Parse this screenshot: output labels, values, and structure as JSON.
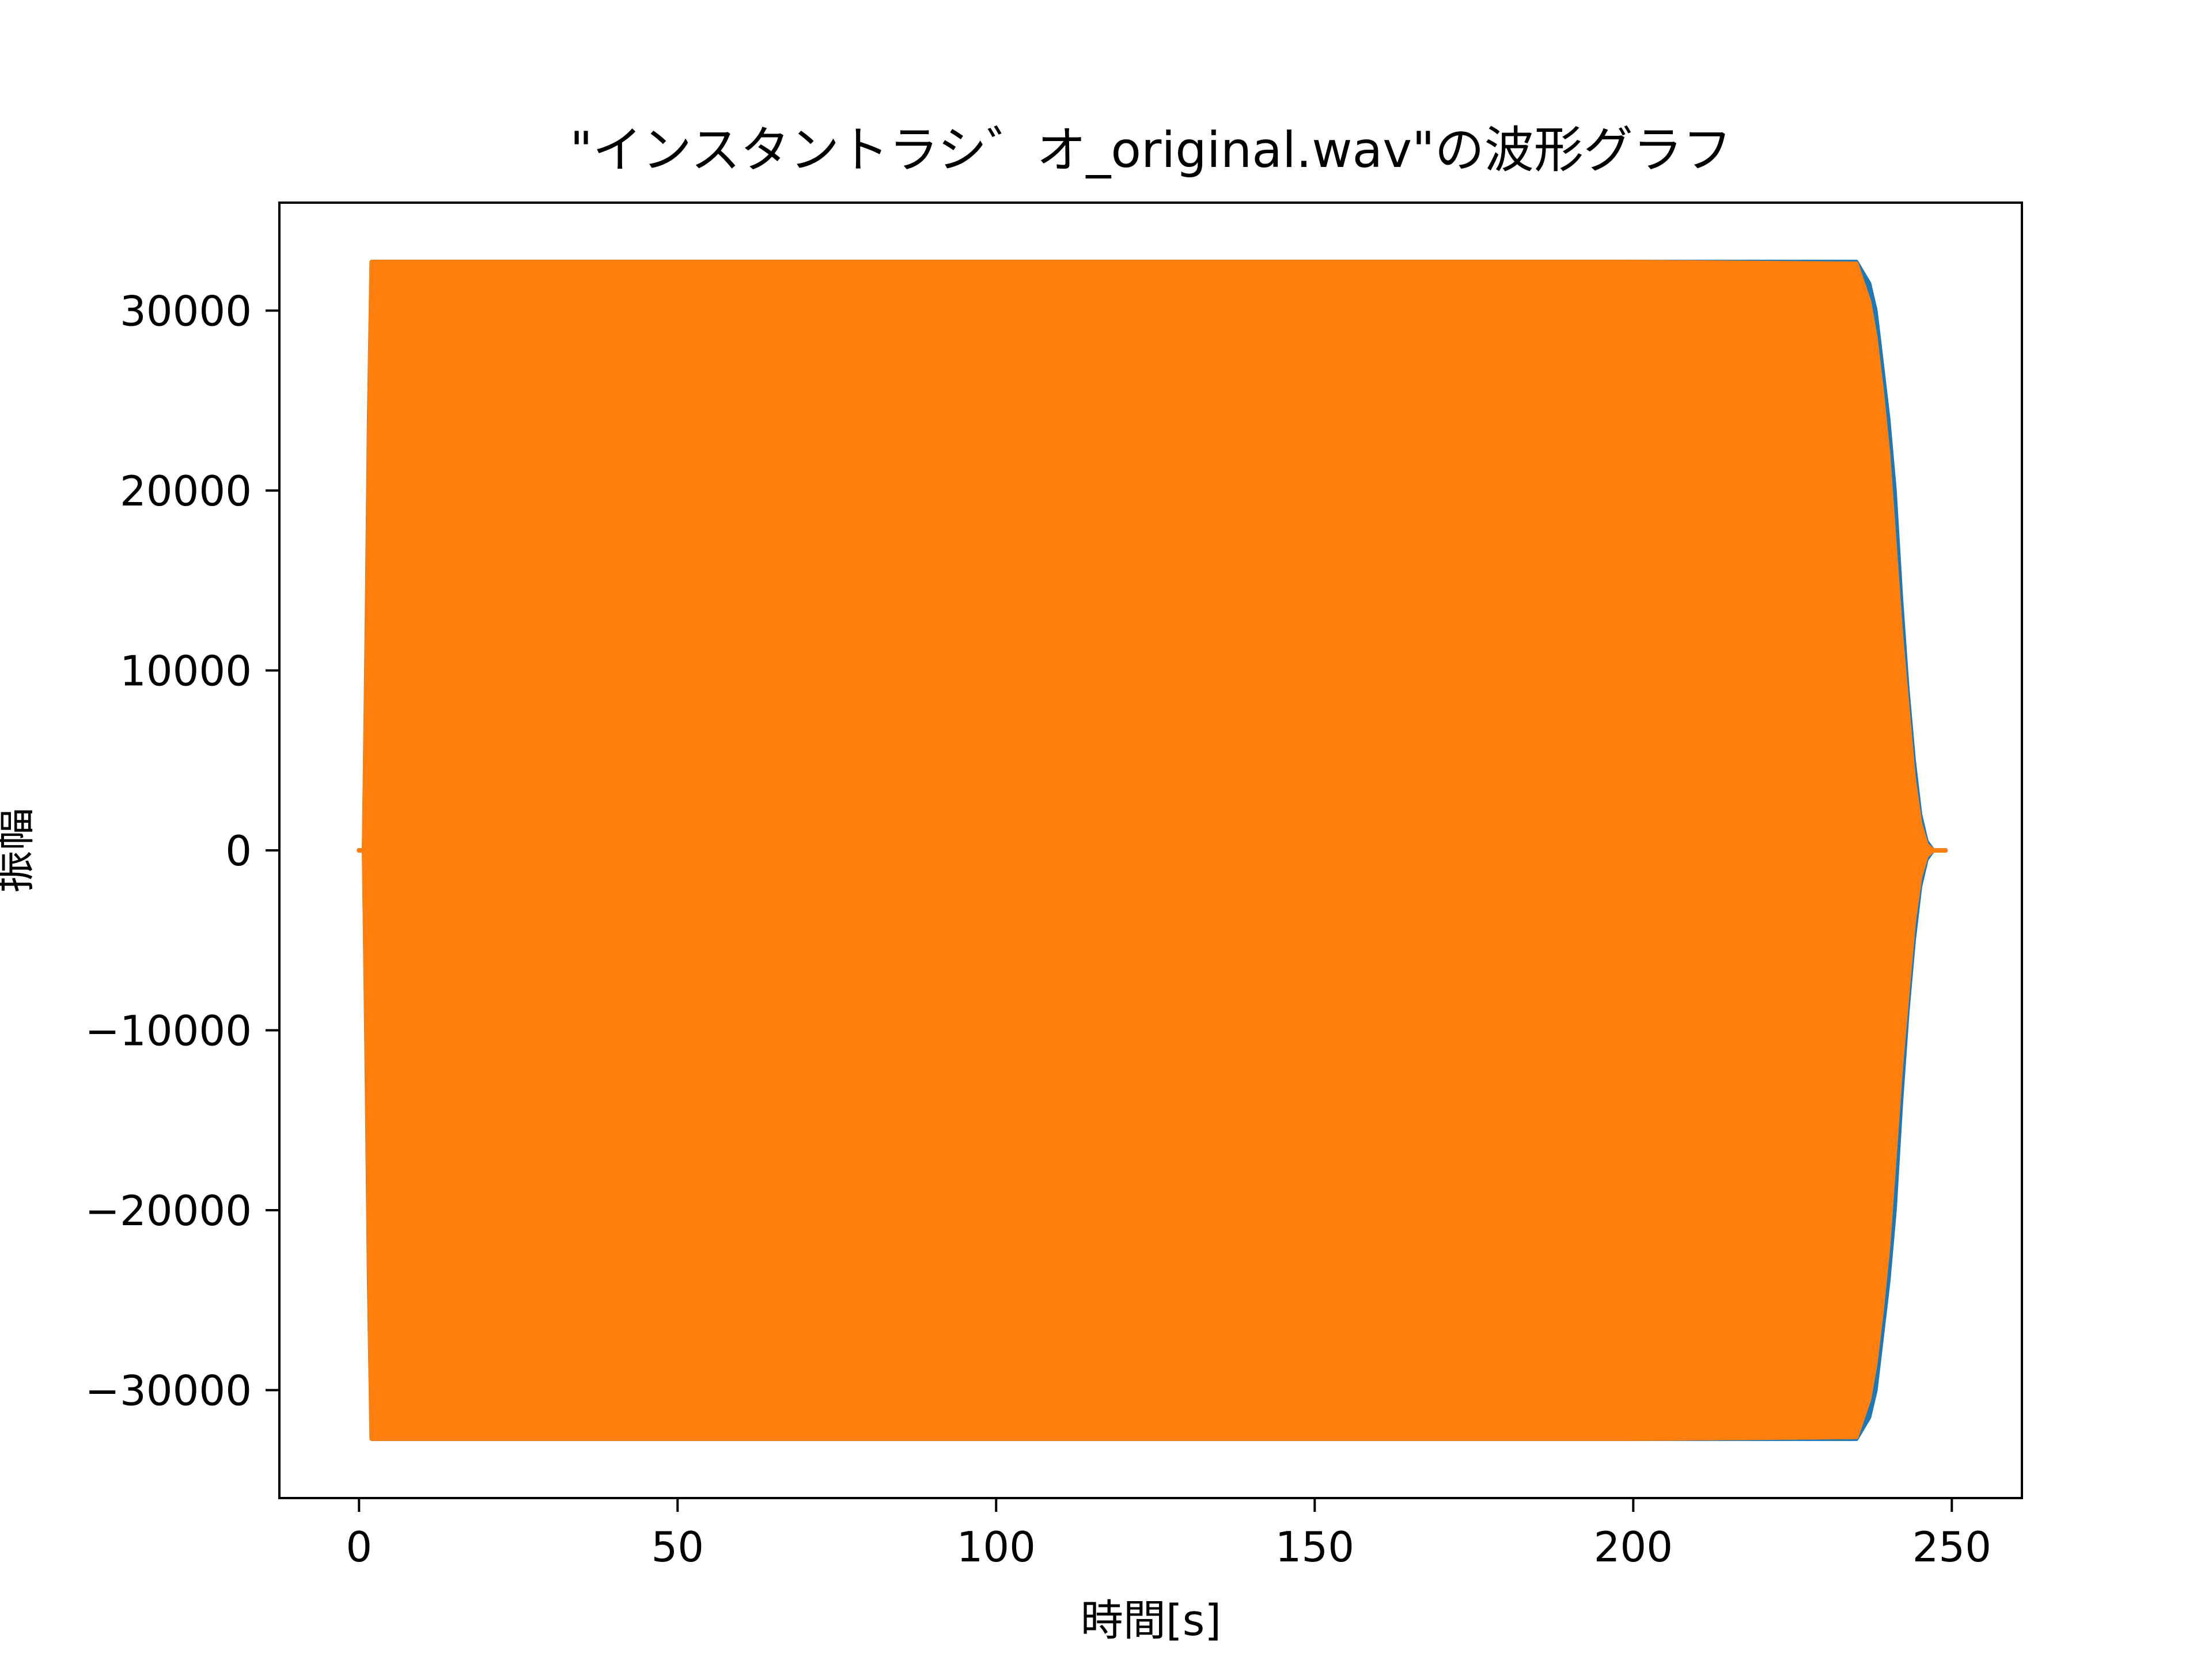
{
  "chart_data": {
    "type": "line",
    "title": "\"インスタントラシ゛オ_original.wav\"の波形グラフ",
    "xlabel": "時間[s]",
    "ylabel": "振幅",
    "xlim": [
      -12.5,
      261
    ],
    "ylim": [
      -36000,
      36000
    ],
    "xticks": [
      0,
      50,
      100,
      150,
      200,
      250
    ],
    "xtick_labels": [
      "0",
      "50",
      "100",
      "150",
      "200",
      "250"
    ],
    "yticks": [
      -30000,
      -20000,
      -10000,
      0,
      10000,
      20000,
      30000
    ],
    "ytick_labels": [
      "−30000",
      "−20000",
      "−10000",
      "0",
      "10000",
      "20000",
      "30000"
    ],
    "grid": false,
    "legend": "none",
    "series": [
      {
        "color": "#1f77b4",
        "envelope": {
          "x": [
            0,
            0.8,
            1.2,
            1.6,
            2,
            5,
            50,
            100,
            150,
            200,
            235,
            237,
            238,
            239,
            240,
            241,
            242,
            243,
            244,
            245,
            246,
            247,
            248,
            249
          ],
          "upper": [
            0,
            0,
            11000,
            24000,
            32700,
            32700,
            32700,
            32700,
            32700,
            32700,
            32700,
            31500,
            30000,
            27000,
            24000,
            20000,
            14000,
            9000,
            5000,
            2000,
            500,
            0,
            0,
            0
          ],
          "lower": [
            0,
            0,
            -11000,
            -24000,
            -32700,
            -32700,
            -32700,
            -32700,
            -32700,
            -32700,
            -32700,
            -31500,
            -30000,
            -27000,
            -24000,
            -20000,
            -14000,
            -9000,
            -5000,
            -2000,
            -500,
            0,
            0,
            0
          ]
        }
      },
      {
        "color": "#ff7f0e",
        "envelope": {
          "x": [
            0,
            0.8,
            1.2,
            1.6,
            2,
            5,
            50,
            100,
            150,
            200,
            235,
            237,
            238,
            239,
            240,
            241,
            242,
            243,
            244,
            245,
            246,
            247,
            248,
            249
          ],
          "upper": [
            0,
            0,
            10000,
            23000,
            32700,
            32700,
            32700,
            32700,
            32700,
            32700,
            32600,
            30500,
            28500,
            25500,
            22000,
            17000,
            12000,
            8000,
            4000,
            1500,
            300,
            0,
            0,
            0
          ],
          "lower": [
            0,
            0,
            -10000,
            -23000,
            -32700,
            -32700,
            -32700,
            -32700,
            -32700,
            -32700,
            -32600,
            -30500,
            -28500,
            -25500,
            -22000,
            -17000,
            -12000,
            -8000,
            -4000,
            -1500,
            -300,
            0,
            0,
            0
          ]
        }
      }
    ]
  }
}
